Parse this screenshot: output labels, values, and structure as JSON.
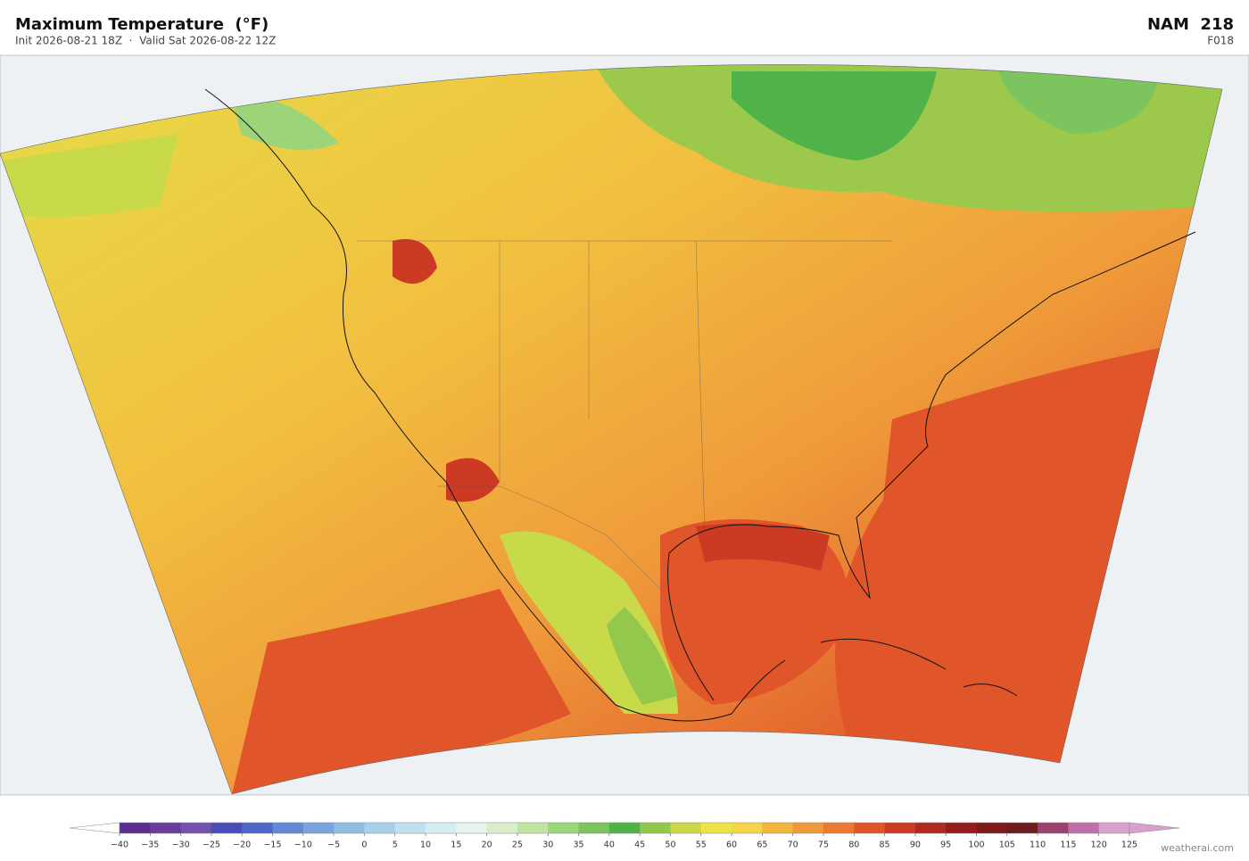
{
  "header": {
    "title": "Maximum Temperature  (°F)",
    "subtitle": "Init 2026-08-21 18Z  ·  Valid Sat 2026-08-22 12Z",
    "model": "NAM  218",
    "forecast_hour": "F018"
  },
  "colorbar": {
    "ticks": [
      {
        "value": -40,
        "label": "−40"
      },
      {
        "value": -35,
        "label": "−35"
      },
      {
        "value": -30,
        "label": "−30"
      },
      {
        "value": -25,
        "label": "−25"
      },
      {
        "value": -20,
        "label": "−20"
      },
      {
        "value": -15,
        "label": "−15"
      },
      {
        "value": -10,
        "label": "−10"
      },
      {
        "value": -5,
        "label": "−5"
      },
      0,
      5,
      10,
      15,
      20,
      25,
      30,
      35,
      40,
      45,
      50,
      55,
      60,
      65,
      70,
      75,
      80,
      85,
      90,
      95,
      100,
      105,
      110,
      115,
      120,
      125
    ],
    "colors": [
      "#5b2d8e",
      "#6a3d9a",
      "#7453ad",
      "#4b4cb8",
      "#4e66c8",
      "#6688d4",
      "#7aa4dc",
      "#8fbde2",
      "#a8d0e8",
      "#c2e0ee",
      "#d6ecf2",
      "#e8f4ee",
      "#d9edc8",
      "#bfe3a0",
      "#9cd47a",
      "#7bc45e",
      "#52b24a",
      "#93c84c",
      "#c8d94a",
      "#ece444",
      "#f5d44a",
      "#f2b63e",
      "#ef9a3a",
      "#ea7a32",
      "#e0552a",
      "#cc3a24",
      "#b02a22",
      "#921c1e",
      "#7e1a1c",
      "#6e1a1e",
      "#9c4070",
      "#c070a8",
      "#d8a0cc"
    ],
    "under_color": "#ffffff",
    "over_color": "#d8a0cc"
  },
  "watermark": "weatherai.com"
}
